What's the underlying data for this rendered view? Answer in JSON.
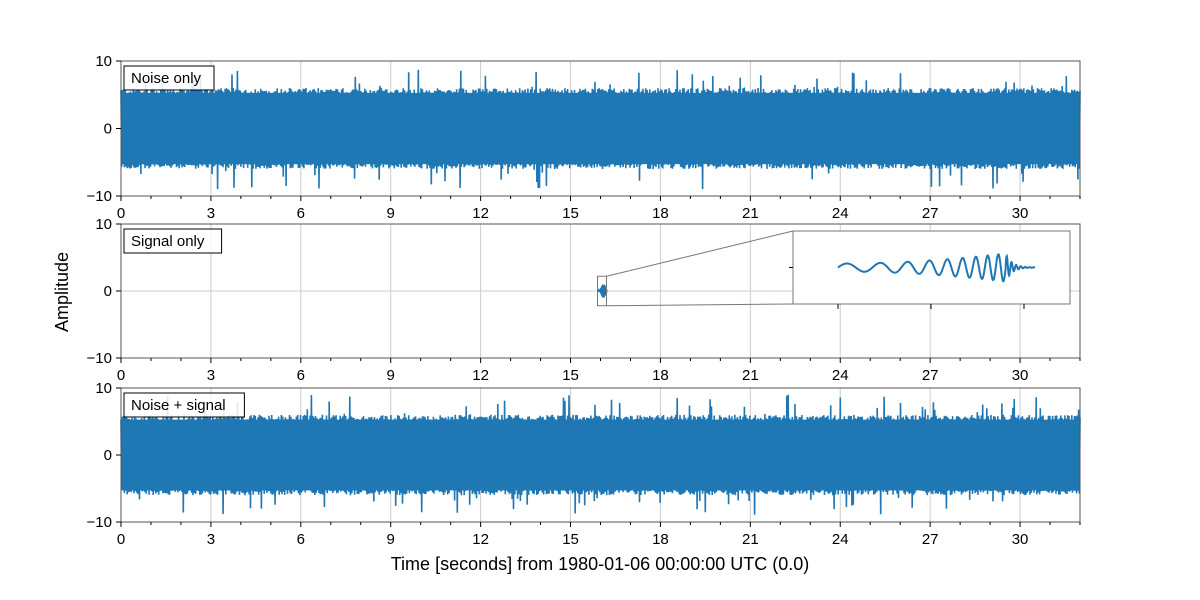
{
  "figure": {
    "ylabel": "Amplitude",
    "xlabel": "Time [seconds] from 1980-01-06 00:00:00 UTC (0.0)"
  },
  "colors": {
    "series": "#1f77b4",
    "grid": "#cccccc",
    "axes": "#555555",
    "inset_frame": "#777777"
  },
  "chart_data": [
    {
      "type": "line",
      "panel": "noise",
      "label": "Noise only",
      "xlim": [
        0,
        32
      ],
      "ylim": [
        -10,
        10
      ],
      "xticks": [
        0,
        3,
        6,
        9,
        12,
        15,
        18,
        21,
        24,
        27,
        30
      ],
      "yticks": [
        -10,
        0,
        10
      ],
      "grid": true,
      "series": [
        {
          "values_description_note": "",
          "band": {
            "typical_peak": 6,
            "max_peak": 9
          }
        }
      ]
    },
    {
      "type": "line",
      "panel": "signal",
      "label": "Signal only",
      "xlim": [
        0,
        32
      ],
      "ylim": [
        -10,
        10
      ],
      "xticks": [
        0,
        3,
        6,
        9,
        12,
        15,
        18,
        21,
        24,
        27,
        30
      ],
      "yticks": [
        -10,
        0,
        10
      ],
      "grid": true,
      "signal": {
        "start": 15.9,
        "end": 16.2,
        "peak_time": 16.1,
        "peak_amplitude": 1
      },
      "inset": {
        "zoom_xlim": [
          15.9,
          16.2
        ],
        "zoom_ylim": [
          -2.2,
          2.2
        ]
      }
    },
    {
      "type": "line",
      "panel": "combined",
      "label": "Noise + signal",
      "xlim": [
        0,
        32
      ],
      "ylim": [
        -10,
        10
      ],
      "xticks": [
        0,
        3,
        6,
        9,
        12,
        15,
        18,
        21,
        24,
        27,
        30
      ],
      "yticks": [
        -10,
        0,
        10
      ],
      "grid": true,
      "series": [
        {
          "band": {
            "typical_peak": 6,
            "max_peak": 9
          }
        }
      ]
    }
  ]
}
